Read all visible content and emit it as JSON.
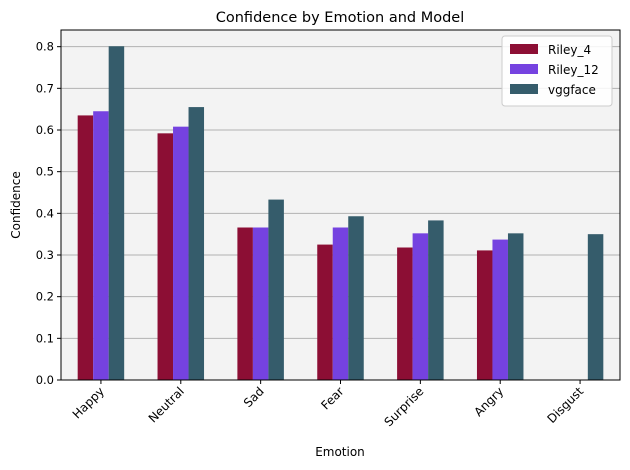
{
  "chart_data": {
    "type": "bar",
    "title": "Confidence by Emotion and Model",
    "xlabel": "Emotion",
    "ylabel": "Confidence",
    "ylim": [
      0,
      0.84
    ],
    "yticks": [
      "0.0",
      "0.1",
      "0.2",
      "0.3",
      "0.4",
      "0.5",
      "0.6",
      "0.7",
      "0.8"
    ],
    "grid": "horizontal",
    "legend_position": "top-right",
    "categories": [
      "Happy",
      "Neutral",
      "Sad",
      "Fear",
      "Surprise",
      "Angry",
      "Disgust"
    ],
    "series": [
      {
        "name": "Riley_4",
        "color": "#8c0e34",
        "values": [
          0.635,
          0.592,
          0.366,
          0.325,
          0.318,
          0.311,
          null
        ]
      },
      {
        "name": "Riley_12",
        "color": "#7542e0",
        "values": [
          0.645,
          0.608,
          0.366,
          0.366,
          0.352,
          0.337,
          null
        ]
      },
      {
        "name": "vggface",
        "color": "#355c6b",
        "values": [
          0.801,
          0.655,
          0.433,
          0.393,
          0.383,
          0.352,
          0.35
        ]
      }
    ],
    "colors": {
      "plot_background": "#f3f3f3",
      "grid": "#b2b2b2"
    }
  }
}
